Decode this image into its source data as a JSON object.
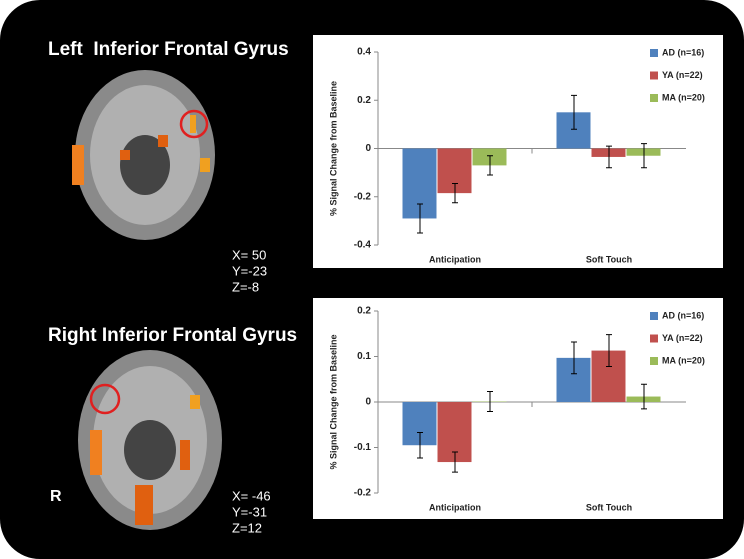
{
  "panels": [
    {
      "title": "Left  Inferior Frontal Gyrus",
      "coords": [
        "X= 50",
        "Y=-23",
        "Z=-8"
      ]
    },
    {
      "title": "Right Inferior Frontal Gyrus",
      "coords": [
        "X= -46",
        "Y=-31",
        "Z=12"
      ],
      "side_label": "R"
    }
  ],
  "chart_data": [
    {
      "type": "bar",
      "ylabel": "% Signal Change from Baseline",
      "categories": [
        "Anticipation",
        "Soft Touch"
      ],
      "series": [
        {
          "name": "AD (n=16)",
          "color": "#4f81bd",
          "values": [
            -0.29,
            0.15
          ],
          "errors": [
            0.06,
            0.07
          ]
        },
        {
          "name": "YA (n=22)",
          "color": "#c0504d",
          "values": [
            -0.185,
            -0.035
          ],
          "errors": [
            0.04,
            0.045
          ]
        },
        {
          "name": "MA (n=20)",
          "color": "#9bbb59",
          "values": [
            -0.07,
            -0.03
          ],
          "errors": [
            0.04,
            0.05
          ]
        }
      ],
      "ylim": [
        -0.4,
        0.4
      ],
      "yticks": [
        -0.4,
        -0.2,
        0,
        0.2,
        0.4
      ],
      "legend": "upper right"
    },
    {
      "type": "bar",
      "ylabel": "% Signal Change from Baseline",
      "categories": [
        "Anticipation",
        "Soft Touch"
      ],
      "series": [
        {
          "name": "AD (n=16)",
          "color": "#4f81bd",
          "values": [
            -0.095,
            0.097
          ],
          "errors": [
            0.028,
            0.035
          ]
        },
        {
          "name": "YA (n=22)",
          "color": "#c0504d",
          "values": [
            -0.132,
            0.113
          ],
          "errors": [
            0.022,
            0.035
          ]
        },
        {
          "name": "MA (n=20)",
          "color": "#9bbb59",
          "values": [
            0.001,
            0.012
          ],
          "errors": [
            0.022,
            0.027
          ]
        }
      ],
      "ylim": [
        -0.2,
        0.2
      ],
      "yticks": [
        -0.2,
        -0.1,
        0,
        0.1,
        0.2
      ],
      "legend": "upper right"
    }
  ]
}
